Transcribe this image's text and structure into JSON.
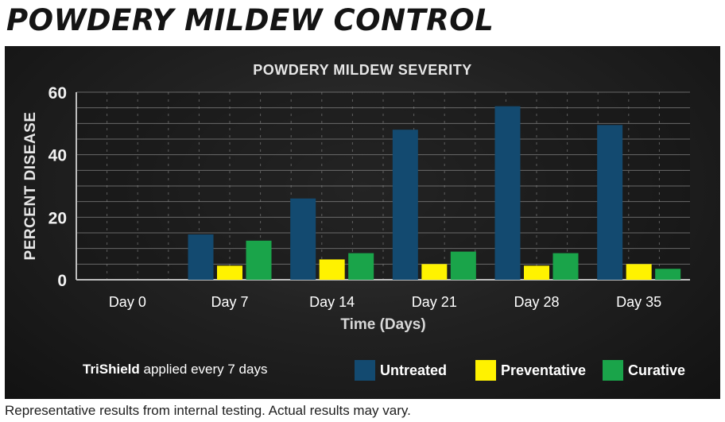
{
  "heading": "POWDERY MILDEW CONTROL",
  "note": {
    "product": "TriShield",
    "text": " applied every 7 days"
  },
  "footnote": "Representative results from internal testing. Actual results may vary.",
  "chart_data": {
    "type": "bar",
    "title": "POWDERY MILDEW SEVERITY",
    "xlabel": "Time (Days)",
    "ylabel": "PERCENT DISEASE",
    "ylim": [
      0,
      60
    ],
    "yticks": [
      0,
      20,
      40,
      60
    ],
    "categories": [
      "Day 0",
      "Day 7",
      "Day 14",
      "Day 21",
      "Day 28",
      "Day 35"
    ],
    "series": [
      {
        "name": "Untreated",
        "color": "#134a70",
        "values": [
          0,
          14.5,
          26,
          48,
          55.5,
          49.5
        ]
      },
      {
        "name": "Preventative",
        "color": "#fff200",
        "values": [
          0,
          4.5,
          6.5,
          5,
          4.5,
          5
        ]
      },
      {
        "name": "Curative",
        "color": "#1aa44a",
        "values": [
          0,
          12.5,
          8.5,
          9,
          8.5,
          3.5
        ]
      }
    ],
    "grid": true,
    "legend_position": "bottom-right"
  }
}
